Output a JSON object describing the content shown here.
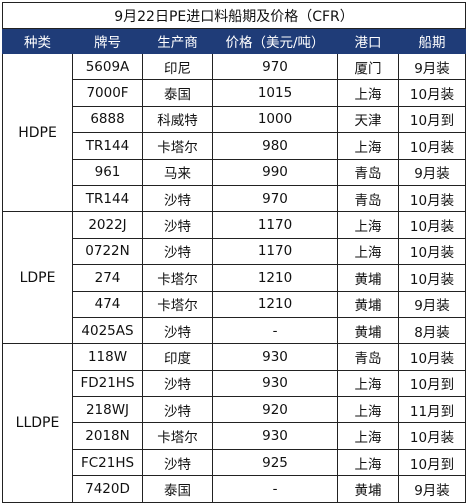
{
  "title": "9月22日PE进口料船期及价格（CFR）",
  "headers": [
    "种类",
    "牌号",
    "生产商",
    "价格（美元/吨）",
    "港口",
    "船期"
  ],
  "groups": [
    {
      "category": "HDPE",
      "rows": [
        {
          "grade": "5609A",
          "mfr": "印尼",
          "price": "970",
          "port": "厦门",
          "ship": "9月装"
        },
        {
          "grade": "7000F",
          "mfr": "泰国",
          "price": "1015",
          "port": "上海",
          "ship": "10月装"
        },
        {
          "grade": "6888",
          "mfr": "科威特",
          "price": "1000",
          "port": "天津",
          "ship": "10月到"
        },
        {
          "grade": "TR144",
          "mfr": "卡塔尔",
          "price": "980",
          "port": "上海",
          "ship": "10月装"
        },
        {
          "grade": "961",
          "mfr": "马来",
          "price": "990",
          "port": "青岛",
          "ship": "9月装"
        },
        {
          "grade": "TR144",
          "mfr": "沙特",
          "price": "970",
          "port": "青岛",
          "ship": "10月装"
        }
      ]
    },
    {
      "category": "LDPE",
      "rows": [
        {
          "grade": "2022J",
          "mfr": "沙特",
          "price": "1170",
          "port": "上海",
          "ship": "10月装"
        },
        {
          "grade": "0722N",
          "mfr": "沙特",
          "price": "1170",
          "port": "上海",
          "ship": "10月装"
        },
        {
          "grade": "274",
          "mfr": "卡塔尔",
          "price": "1210",
          "port": "黄埔",
          "ship": "10月装"
        },
        {
          "grade": "474",
          "mfr": "卡塔尔",
          "price": "1210",
          "port": "黄埔",
          "ship": "9月装"
        },
        {
          "grade": "4025AS",
          "mfr": "沙特",
          "price": "-",
          "port": "黄埔",
          "ship": "8月装"
        }
      ]
    },
    {
      "category": "LLDPE",
      "rows": [
        {
          "grade": "118W",
          "mfr": "印度",
          "price": "930",
          "port": "青岛",
          "ship": "10月装"
        },
        {
          "grade": "FD21HS",
          "mfr": "沙特",
          "price": "930",
          "port": "上海",
          "ship": "10月到"
        },
        {
          "grade": "218WJ",
          "mfr": "沙特",
          "price": "920",
          "port": "上海",
          "ship": "11月到"
        },
        {
          "grade": "2018N",
          "mfr": "卡塔尔",
          "price": "930",
          "port": "上海",
          "ship": "10月装"
        },
        {
          "grade": "FC21HS",
          "mfr": "沙特",
          "price": "925",
          "port": "上海",
          "ship": "10月到"
        },
        {
          "grade": "7420D",
          "mfr": "泰国",
          "price": "-",
          "port": "黄埔",
          "ship": "9月装"
        }
      ]
    }
  ],
  "colors": {
    "header_bg": "#1f3c78",
    "header_text": "#ffffff",
    "grid": "#222222"
  }
}
